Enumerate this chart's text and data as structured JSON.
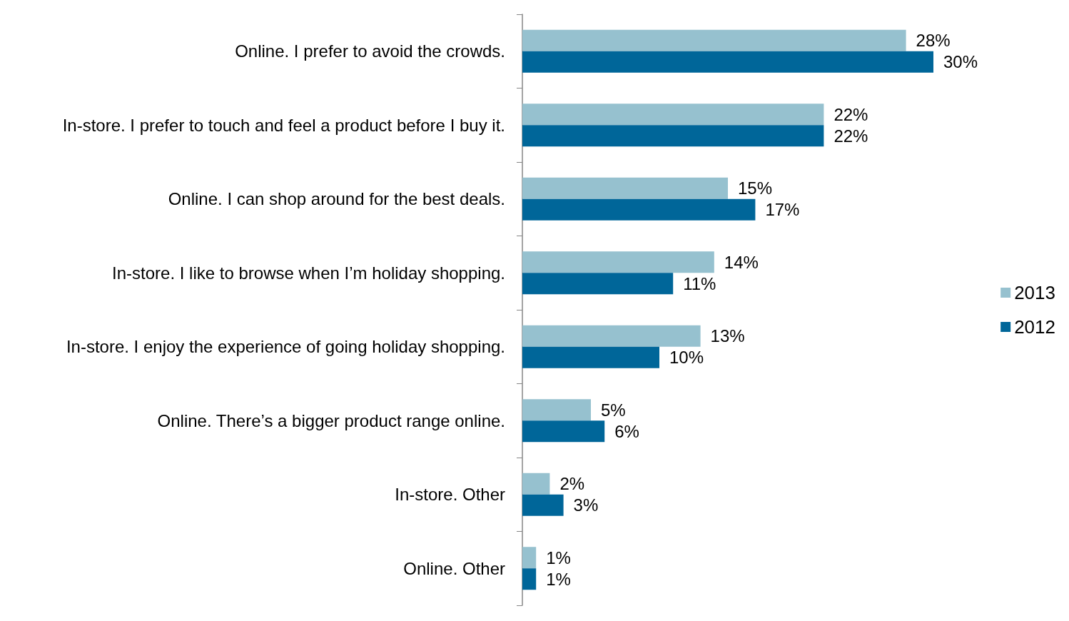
{
  "chart_data": {
    "type": "bar",
    "orientation": "horizontal",
    "categories": [
      "Online. I prefer to avoid the crowds.",
      "In-store. I prefer to touch and feel a product before I buy it.",
      "Online. I can shop around for the best deals.",
      "In-store. I like to browse when I’m holiday shopping.",
      "In-store. I enjoy the experience of going holiday shopping.",
      "Online. There’s a bigger product range online.",
      "In-store. Other",
      "Online. Other"
    ],
    "series": [
      {
        "name": "2013",
        "color": "#96c1cf",
        "values": [
          28,
          22,
          15,
          14,
          13,
          5,
          2,
          1
        ],
        "value_labels": [
          "28%",
          "22%",
          "15%",
          "14%",
          "13%",
          "5%",
          "2%",
          "1%"
        ]
      },
      {
        "name": "2012",
        "color": "#006699",
        "values": [
          30,
          22,
          17,
          11,
          10,
          6,
          3,
          1
        ],
        "value_labels": [
          "30%",
          "22%",
          "17%",
          "11%",
          "10%",
          "6%",
          "3%",
          "1%"
        ]
      }
    ],
    "legend": "right"
  }
}
